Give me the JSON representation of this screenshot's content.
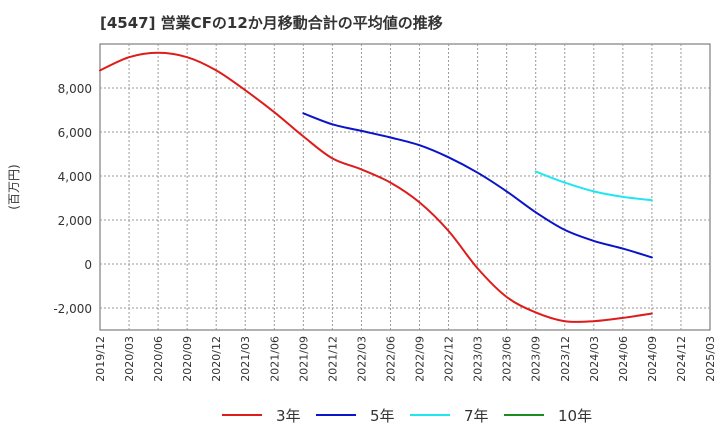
{
  "chart_data": {
    "type": "line",
    "title": "[4547]  営業CFの12か月移動合計の平均値の推移",
    "ylabel": "(百万円)",
    "xlabel": "",
    "ylim": [
      -3000,
      10000
    ],
    "yticks": [
      -2000,
      0,
      2000,
      4000,
      6000,
      8000
    ],
    "ytick_labels": [
      "-2,000",
      "0",
      "2,000",
      "4,000",
      "6,000",
      "8,000"
    ],
    "xtick_labels": [
      "2019/12",
      "2020/03",
      "2020/06",
      "2020/09",
      "2020/12",
      "2021/03",
      "2021/06",
      "2021/09",
      "2021/12",
      "2022/03",
      "2022/06",
      "2022/09",
      "2022/12",
      "2023/03",
      "2023/06",
      "2023/09",
      "2023/12",
      "2024/03",
      "2024/06",
      "2024/09",
      "2024/12",
      "2025/03"
    ],
    "grid": true,
    "legend_position": "bottom",
    "series": [
      {
        "name": "3年",
        "color": "#dd1c1c",
        "x": [
          "2019/12",
          "2020/03",
          "2020/06",
          "2020/09",
          "2020/12",
          "2021/03",
          "2021/06",
          "2021/09",
          "2021/12",
          "2022/03",
          "2022/06",
          "2022/09",
          "2022/12",
          "2023/03",
          "2023/06",
          "2023/09",
          "2023/12",
          "2024/03",
          "2024/06",
          "2024/09"
        ],
        "values": [
          8800,
          9400,
          9600,
          9400,
          8800,
          7900,
          6900,
          5800,
          4800,
          4300,
          3700,
          2800,
          1500,
          -200,
          -1500,
          -2200,
          -2600,
          -2600,
          -2450,
          -2250
        ]
      },
      {
        "name": "5年",
        "color": "#0a14c8",
        "x": [
          "2021/09",
          "2021/12",
          "2022/03",
          "2022/06",
          "2022/09",
          "2022/12",
          "2023/03",
          "2023/06",
          "2023/09",
          "2023/12",
          "2024/03",
          "2024/06",
          "2024/09"
        ],
        "values": [
          6850,
          6350,
          6050,
          5750,
          5400,
          4850,
          4150,
          3300,
          2350,
          1550,
          1050,
          700,
          300
        ]
      },
      {
        "name": "7年",
        "color": "#22e6ef",
        "x": [
          "2023/09",
          "2023/12",
          "2024/03",
          "2024/06",
          "2024/09"
        ],
        "values": [
          4200,
          3700,
          3300,
          3050,
          2900
        ]
      },
      {
        "name": "10年",
        "color": "#1e8c1e",
        "x": [],
        "values": []
      }
    ]
  }
}
